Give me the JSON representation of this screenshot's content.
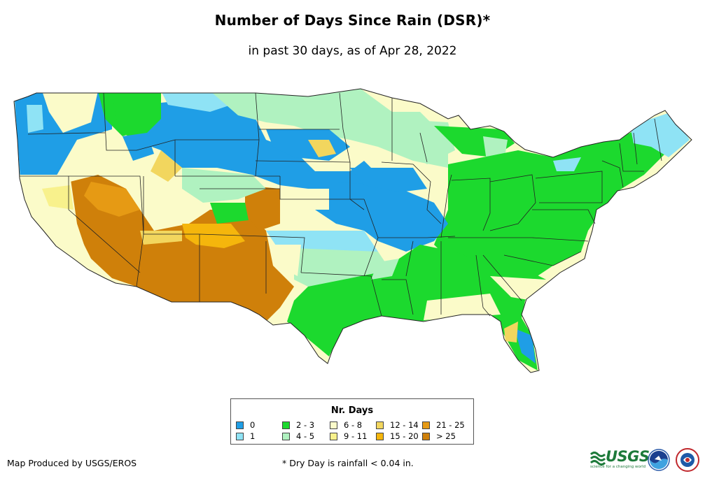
{
  "title": "Number of Days Since Rain (DSR)*",
  "subtitle": "in past 30 days, as of Apr 28, 2022",
  "legend": {
    "title": "Nr. Days",
    "items": [
      {
        "label": "0",
        "color": "#1f9ee6"
      },
      {
        "label": "1",
        "color": "#8fe3f5"
      },
      {
        "label": "2 - 3",
        "color": "#1cd92e"
      },
      {
        "label": "4 - 5",
        "color": "#b0f2c0"
      },
      {
        "label": "6 - 8",
        "color": "#fbfbc9"
      },
      {
        "label": "9 - 11",
        "color": "#f8f18c"
      },
      {
        "label": "12 - 14",
        "color": "#f2d65e"
      },
      {
        "label": "15 - 20",
        "color": "#f5b60c"
      },
      {
        "label": "21 - 25",
        "color": "#e69a14"
      },
      {
        "label": "> 25",
        "color": "#cf800a"
      }
    ]
  },
  "credit": "Map Produced by USGS/EROS",
  "footnote": "* Dry Day is rainfall < 0.04 in.",
  "logos": {
    "usgs": "USGS",
    "usgs_tagline": "science for a changing world",
    "noaa_icon": "noaa-logo-icon",
    "nws_icon": "nws-logo-icon"
  }
}
